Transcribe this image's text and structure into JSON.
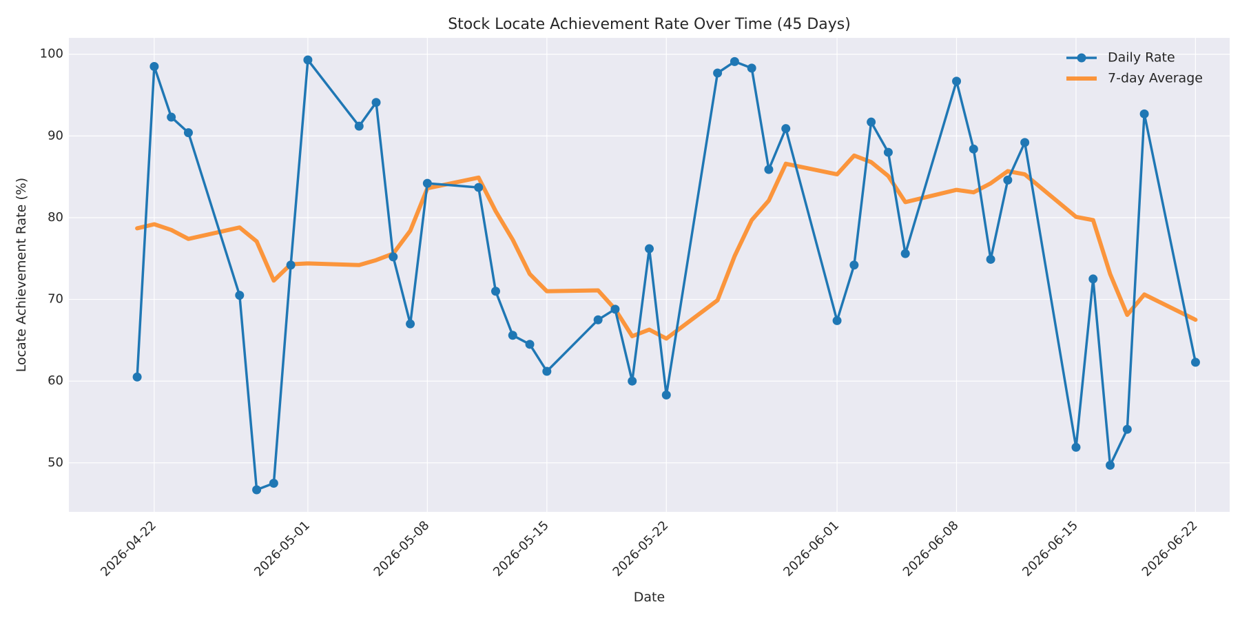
{
  "chart_data": {
    "type": "line",
    "title": "Stock Locate Achievement Rate Over Time (45 Days)",
    "xlabel": "Date",
    "ylabel": "Locate Achievement Rate (%)",
    "xlim": [
      "2026-04-17",
      "2026-06-24"
    ],
    "ylim": [
      44,
      102
    ],
    "x_ticks": [
      "2026-04-22",
      "2026-05-01",
      "2026-05-08",
      "2026-05-15",
      "2026-05-22",
      "2026-06-01",
      "2026-06-08",
      "2026-06-15",
      "2026-06-22"
    ],
    "y_ticks": [
      50,
      60,
      70,
      80,
      90,
      100
    ],
    "grid": true,
    "legend": {
      "placement": "top-right"
    },
    "series": [
      {
        "name": "Daily Rate",
        "color": "#1f77b4",
        "marker": "circle",
        "points": [
          [
            "2026-04-21",
            60.5
          ],
          [
            "2026-04-22",
            98.5
          ],
          [
            "2026-04-23",
            92.3
          ],
          [
            "2026-04-24",
            90.4
          ],
          [
            "2026-04-27",
            70.5
          ],
          [
            "2026-04-28",
            46.7
          ],
          [
            "2026-04-29",
            47.5
          ],
          [
            "2026-04-30",
            74.2
          ],
          [
            "2026-05-01",
            99.3
          ],
          [
            "2026-05-04",
            91.2
          ],
          [
            "2026-05-05",
            94.1
          ],
          [
            "2026-05-06",
            75.2
          ],
          [
            "2026-05-07",
            67.0
          ],
          [
            "2026-05-08",
            84.2
          ],
          [
            "2026-05-11",
            83.7
          ],
          [
            "2026-05-12",
            71.0
          ],
          [
            "2026-05-13",
            65.6
          ],
          [
            "2026-05-14",
            64.5
          ],
          [
            "2026-05-15",
            61.2
          ],
          [
            "2026-05-18",
            67.5
          ],
          [
            "2026-05-19",
            68.8
          ],
          [
            "2026-05-20",
            60.0
          ],
          [
            "2026-05-21",
            76.2
          ],
          [
            "2026-05-22",
            58.3
          ],
          [
            "2026-05-25",
            97.7
          ],
          [
            "2026-05-26",
            99.1
          ],
          [
            "2026-05-27",
            98.3
          ],
          [
            "2026-05-28",
            85.9
          ],
          [
            "2026-05-29",
            90.9
          ],
          [
            "2026-06-01",
            67.4
          ],
          [
            "2026-06-02",
            74.2
          ],
          [
            "2026-06-03",
            91.7
          ],
          [
            "2026-06-04",
            88.0
          ],
          [
            "2026-06-05",
            75.6
          ],
          [
            "2026-06-08",
            96.7
          ],
          [
            "2026-06-09",
            88.4
          ],
          [
            "2026-06-10",
            74.9
          ],
          [
            "2026-06-11",
            84.6
          ],
          [
            "2026-06-12",
            89.2
          ],
          [
            "2026-06-15",
            51.9
          ],
          [
            "2026-06-16",
            72.5
          ],
          [
            "2026-06-17",
            49.7
          ],
          [
            "2026-06-18",
            54.1
          ],
          [
            "2026-06-19",
            92.7
          ],
          [
            "2026-06-22",
            62.3
          ]
        ]
      },
      {
        "name": "7-day Average",
        "color": "#ff7f0e",
        "marker": "none",
        "points": [
          [
            "2026-04-21",
            78.7
          ],
          [
            "2026-04-22",
            79.2
          ],
          [
            "2026-04-23",
            78.5
          ],
          [
            "2026-04-24",
            77.4
          ],
          [
            "2026-04-27",
            78.8
          ],
          [
            "2026-04-28",
            77.1
          ],
          [
            "2026-04-29",
            72.3
          ],
          [
            "2026-04-30",
            74.3
          ],
          [
            "2026-05-01",
            74.4
          ],
          [
            "2026-05-04",
            74.2
          ],
          [
            "2026-05-05",
            74.8
          ],
          [
            "2026-05-06",
            75.6
          ],
          [
            "2026-05-07",
            78.4
          ],
          [
            "2026-05-08",
            83.6
          ],
          [
            "2026-05-11",
            84.9
          ],
          [
            "2026-05-12",
            80.8
          ],
          [
            "2026-05-13",
            77.3
          ],
          [
            "2026-05-14",
            73.1
          ],
          [
            "2026-05-15",
            71.0
          ],
          [
            "2026-05-18",
            71.1
          ],
          [
            "2026-05-19",
            68.8
          ],
          [
            "2026-05-20",
            65.5
          ],
          [
            "2026-05-21",
            66.3
          ],
          [
            "2026-05-22",
            65.2
          ],
          [
            "2026-05-25",
            69.9
          ],
          [
            "2026-05-26",
            75.3
          ],
          [
            "2026-05-27",
            79.7
          ],
          [
            "2026-05-28",
            82.1
          ],
          [
            "2026-05-29",
            86.6
          ],
          [
            "2026-06-01",
            85.3
          ],
          [
            "2026-06-02",
            87.6
          ],
          [
            "2026-06-03",
            86.8
          ],
          [
            "2026-06-04",
            85.1
          ],
          [
            "2026-06-05",
            81.9
          ],
          [
            "2026-06-08",
            83.4
          ],
          [
            "2026-06-09",
            83.1
          ],
          [
            "2026-06-10",
            84.2
          ],
          [
            "2026-06-11",
            85.7
          ],
          [
            "2026-06-12",
            85.3
          ],
          [
            "2026-06-15",
            80.1
          ],
          [
            "2026-06-16",
            79.7
          ],
          [
            "2026-06-17",
            73.1
          ],
          [
            "2026-06-18",
            68.1
          ],
          [
            "2026-06-19",
            70.6
          ],
          [
            "2026-06-22",
            67.5
          ]
        ]
      }
    ]
  }
}
